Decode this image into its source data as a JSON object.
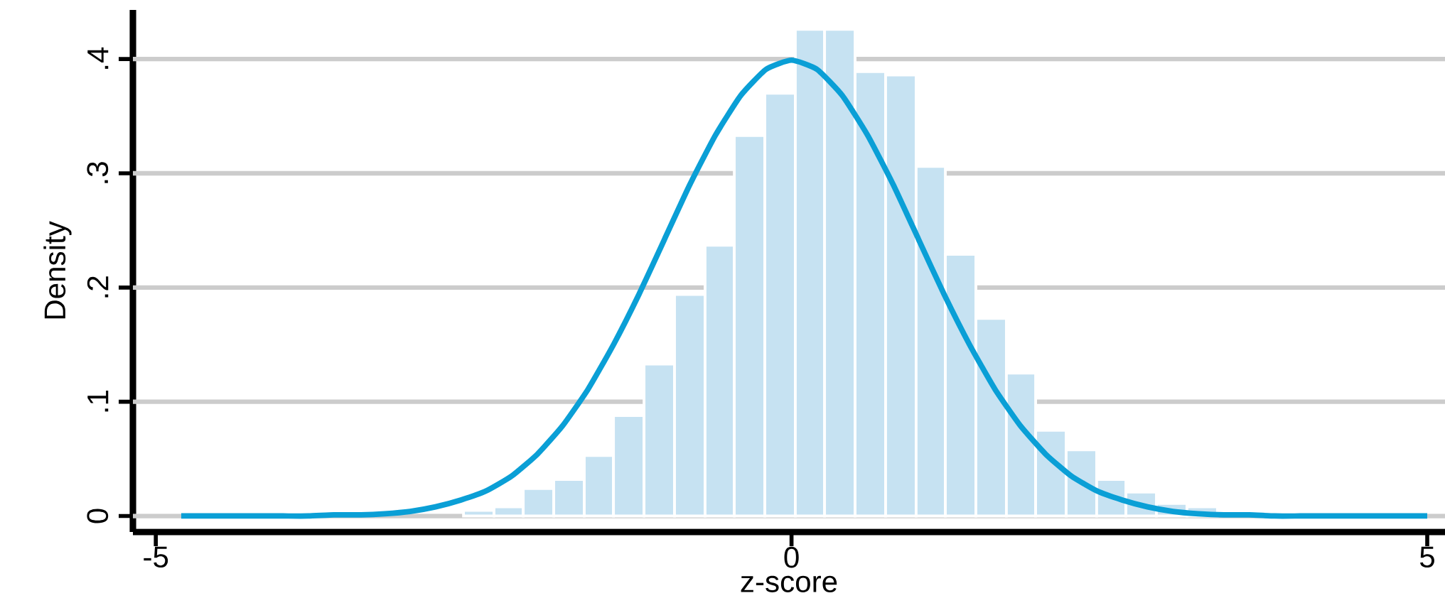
{
  "chart_data": {
    "type": "histogram",
    "xlabel": "z-score",
    "ylabel": "Density",
    "series": [
      {
        "color": "#c6e2f2",
        "bins": [
          -2.58,
          -2.34,
          -2.11,
          -1.87,
          -1.63,
          -1.4,
          -1.16,
          -0.92,
          -0.68,
          -0.45,
          -0.21,
          0.03,
          0.26,
          0.5,
          0.74,
          0.98,
          1.21,
          1.45,
          1.69,
          1.92,
          2.16,
          2.4,
          2.63,
          2.87,
          3.11,
          3.35
        ],
        "values": [
          0.005,
          0.008,
          0.024,
          0.032,
          0.053,
          0.088,
          0.133,
          0.194,
          0.237,
          0.333,
          0.37,
          0.426,
          0.426,
          0.389,
          0.386,
          0.306,
          0.229,
          0.173,
          0.125,
          0.075,
          0.058,
          0.032,
          0.021,
          0.011,
          0.008
        ]
      },
      {
        "type": "line",
        "color": "#0a9fd6",
        "x": [
          -4.8,
          -4.6,
          -4.4,
          -4.2,
          -4.0,
          -3.8,
          -3.6,
          -3.4,
          -3.2,
          -3.0,
          -2.8,
          -2.6,
          -2.4,
          -2.2,
          -2.0,
          -1.8,
          -1.6,
          -1.4,
          -1.2,
          -1.0,
          -0.8,
          -0.6,
          -0.4,
          -0.2,
          0.0,
          0.2,
          0.4,
          0.6,
          0.8,
          1.0,
          1.2,
          1.4,
          1.6,
          1.8,
          2.0,
          2.2,
          2.4,
          2.6,
          2.8,
          3.0,
          3.2,
          3.4,
          3.6,
          3.8,
          4.0,
          4.2,
          4.4,
          4.6,
          4.8,
          5.0
        ],
        "values": [
          0,
          0,
          0,
          0,
          0,
          0,
          0.001,
          0.001,
          0.002,
          0.004,
          0.008,
          0.014,
          0.022,
          0.035,
          0.054,
          0.079,
          0.111,
          0.15,
          0.194,
          0.242,
          0.29,
          0.333,
          0.368,
          0.391,
          0.399,
          0.391,
          0.368,
          0.333,
          0.29,
          0.242,
          0.194,
          0.15,
          0.111,
          0.079,
          0.054,
          0.035,
          0.022,
          0.014,
          0.008,
          0.004,
          0.002,
          0.001,
          0.001,
          0,
          0,
          0,
          0,
          0,
          0,
          0
        ]
      }
    ],
    "xlim": [
      -5.18,
      5.14
    ],
    "ylim": [
      -0.014,
      0.443
    ],
    "xticks": [
      -5,
      0,
      5
    ],
    "yticks": [
      0,
      {
        "value": 0.1,
        "label": ".1"
      },
      {
        "value": 0.2,
        "label": ".2"
      },
      {
        "value": 0.3,
        "label": ".3"
      },
      {
        "value": 0.4,
        "label": ".4"
      }
    ],
    "grid": "y"
  }
}
